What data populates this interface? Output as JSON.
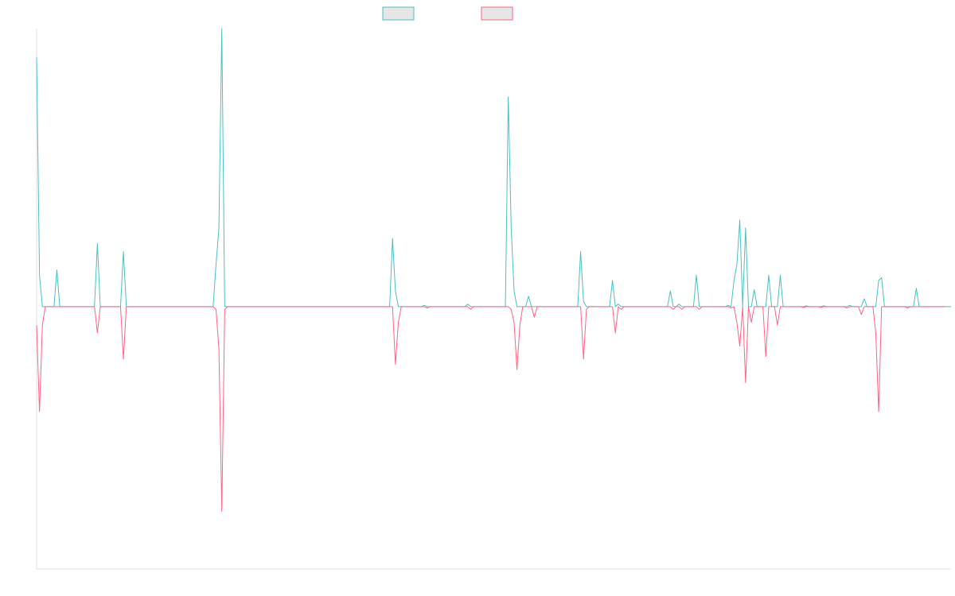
{
  "chart_data": {
    "type": "line",
    "title": "",
    "xlabel": "",
    "ylabel": "",
    "ylim": [
      -1,
      1.06
    ],
    "grid": false,
    "legend_placement": "top-center",
    "colors": {
      "series_a": "#4bc0c0",
      "series_b": "#ff6384",
      "legend_fill": "#e6e6e6",
      "axis": "#e0e0e0"
    },
    "series": [
      {
        "name": "",
        "values": [
          0.95,
          0.12,
          0,
          0,
          0,
          0,
          0,
          0.14,
          0,
          0,
          0,
          0,
          0,
          0,
          0,
          0,
          0,
          0,
          0,
          0,
          0,
          0.24,
          0,
          0,
          0,
          0,
          0,
          0,
          0,
          0,
          0.21,
          0,
          0,
          0,
          0,
          0,
          0,
          0,
          0,
          0,
          0,
          0,
          0,
          0,
          0,
          0,
          0,
          0,
          0,
          0,
          0,
          0,
          0,
          0,
          0,
          0,
          0,
          0,
          0,
          0,
          0,
          0,
          0.16,
          0.3,
          1.06,
          0,
          0,
          0,
          0,
          0,
          0,
          0,
          0,
          0,
          0,
          0,
          0,
          0,
          0,
          0,
          0,
          0,
          0,
          0,
          0,
          0,
          0,
          0,
          0,
          0,
          0,
          0,
          0,
          0,
          0,
          0,
          0,
          0,
          0,
          0,
          0,
          0,
          0,
          0,
          0,
          0,
          0,
          0,
          0,
          0,
          0,
          0,
          0,
          0,
          0,
          0,
          0,
          0,
          0,
          0,
          0,
          0,
          0,
          0.26,
          0.06,
          0,
          0,
          0,
          0,
          0,
          0,
          0,
          0,
          0,
          0.005,
          0,
          0,
          0,
          0,
          0,
          0,
          0,
          0,
          0,
          0,
          0,
          0,
          0,
          0,
          0.01,
          0,
          0,
          0,
          0,
          0,
          0,
          0,
          0,
          0,
          0,
          0,
          0,
          0,
          0.8,
          0.3,
          0.06,
          0,
          0,
          0,
          0,
          0.04,
          0,
          0,
          0,
          0,
          0,
          0,
          0,
          0,
          0,
          0,
          0,
          0,
          0,
          0,
          0,
          0,
          0,
          0.21,
          0.02,
          0,
          0,
          0,
          0,
          0,
          0,
          0,
          0,
          0,
          0.1,
          0,
          0.01,
          0,
          0,
          0,
          0,
          0,
          0,
          0,
          0,
          0,
          0,
          0,
          0,
          0,
          0,
          0,
          0,
          0,
          0.06,
          0,
          0,
          0.01,
          0,
          0,
          0,
          0,
          0,
          0.12,
          0,
          0,
          0,
          0,
          0,
          0,
          0,
          0,
          0,
          0,
          0.005,
          0,
          0.1,
          0.16,
          0.33,
          0,
          0.3,
          0,
          0,
          0.065,
          0,
          0,
          0,
          0,
          0.12,
          0,
          0,
          0,
          0.12,
          0,
          0,
          0,
          0,
          0,
          0,
          0,
          0,
          0.003,
          0,
          0,
          0,
          0,
          0,
          0.003,
          0,
          0,
          0,
          0,
          0,
          0,
          0,
          0,
          0.005,
          0,
          0,
          0,
          0,
          0.03,
          0,
          0,
          0,
          0,
          0.1,
          0.11,
          0,
          0,
          0,
          0,
          0,
          0,
          0,
          0,
          0,
          0,
          0,
          0.07,
          0,
          0,
          0,
          0,
          0,
          0,
          0,
          0,
          0,
          0,
          0,
          0
        ]
      },
      {
        "name": "",
        "values": [
          -0.07,
          -0.4,
          -0.07,
          0,
          0,
          0,
          0,
          0,
          0,
          0,
          0,
          0,
          0,
          0,
          0,
          0,
          0,
          0,
          0,
          0,
          0,
          -0.1,
          0,
          0,
          0,
          0,
          0,
          0,
          0,
          0,
          -0.2,
          0,
          0,
          0,
          0,
          0,
          0,
          0,
          0,
          0,
          0,
          0,
          0,
          0,
          0,
          0,
          0,
          0,
          0,
          0,
          0,
          0,
          0,
          0,
          0,
          0,
          0,
          0,
          0,
          0,
          0,
          0,
          -0.01,
          -0.16,
          -0.78,
          -0.01,
          0,
          0,
          0,
          0,
          0,
          0,
          0,
          0,
          0,
          0,
          0,
          0,
          0,
          0,
          0,
          0,
          0,
          0,
          0,
          0,
          0,
          0,
          0,
          0,
          0,
          0,
          0,
          0,
          0,
          0,
          0,
          0,
          0,
          0,
          0,
          0,
          0,
          0,
          0,
          0,
          0,
          0,
          0,
          0,
          0,
          0,
          0,
          0,
          0,
          0,
          0,
          0,
          0,
          0,
          0,
          0,
          0,
          0,
          -0.22,
          -0.06,
          0,
          0,
          0,
          0,
          0,
          0,
          0,
          0,
          0,
          -0.005,
          0,
          0,
          0,
          0,
          0,
          0,
          0,
          0,
          0,
          0,
          0,
          0,
          0,
          0,
          -0.01,
          0,
          0,
          0,
          0,
          0,
          0,
          0,
          0,
          0,
          0,
          0,
          0,
          0,
          -0.01,
          -0.06,
          -0.24,
          -0.07,
          0,
          0,
          0,
          0,
          -0.04,
          0,
          0,
          0,
          0,
          0,
          0,
          0,
          0,
          0,
          0,
          0,
          0,
          0,
          0,
          0,
          0,
          -0.2,
          -0.01,
          0,
          0,
          0,
          0,
          0,
          0,
          0,
          0,
          0,
          -0.1,
          0,
          -0.01,
          0,
          0,
          0,
          0,
          0,
          0,
          0,
          0,
          0,
          0,
          0,
          0,
          0,
          0,
          0,
          0,
          0,
          -0.01,
          0,
          0,
          -0.01,
          0,
          0,
          0,
          0,
          0,
          -0.01,
          0,
          0,
          0,
          0,
          0,
          0,
          0,
          0,
          0,
          0,
          -0.005,
          0,
          -0.06,
          -0.15,
          0,
          -0.29,
          0,
          -0.06,
          0,
          0,
          0,
          0,
          -0.19,
          0,
          0,
          0,
          -0.07,
          0,
          0,
          0,
          0,
          0,
          0,
          0,
          0,
          -0.003,
          0,
          0,
          0,
          0,
          0,
          -0.003,
          0,
          0,
          0,
          0,
          0,
          0,
          0,
          0,
          -0.005,
          0,
          0,
          0,
          0,
          -0.03,
          0,
          0,
          0,
          0,
          -0.1,
          -0.4,
          0,
          0,
          0,
          0,
          0,
          0,
          0,
          0,
          0,
          -0.005,
          0,
          0,
          0,
          0,
          0,
          0,
          0,
          0,
          0,
          0,
          0,
          0,
          0
        ]
      }
    ]
  }
}
